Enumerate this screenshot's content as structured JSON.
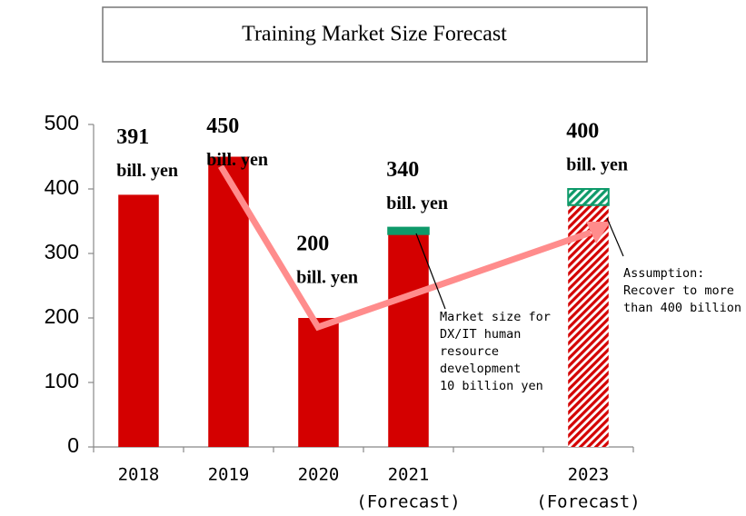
{
  "chart_data": {
    "type": "bar",
    "title": "Training Market Size Forecast",
    "categories": [
      "2018",
      "2019",
      "2020",
      "2021",
      null,
      "2023"
    ],
    "category_notes": [
      null,
      null,
      null,
      "(Forecast)",
      null,
      "(Forecast)"
    ],
    "series": [
      {
        "color": "#d40000",
        "values": [
          391,
          450,
          200,
          330,
          null,
          375
        ],
        "hatched": [
          false,
          false,
          false,
          false,
          false,
          true
        ]
      },
      {
        "color": "#0e9a6a",
        "values": [
          null,
          null,
          null,
          10,
          null,
          25
        ],
        "hatched": [
          false,
          false,
          false,
          false,
          false,
          true
        ]
      }
    ],
    "total_labels": [
      391,
      450,
      200,
      340,
      null,
      400
    ],
    "unit": "bill. yen",
    "ylim": [
      0,
      500
    ],
    "yticks": [
      0,
      100,
      200,
      300,
      400,
      500
    ],
    "annotations": [
      {
        "lines": [
          "Market size for",
          "DX/IT human",
          "resource",
          "development",
          "10 billion yen"
        ]
      },
      {
        "lines": [
          "Assumption:",
          "Recover to more",
          "than 400 billion"
        ]
      }
    ]
  }
}
